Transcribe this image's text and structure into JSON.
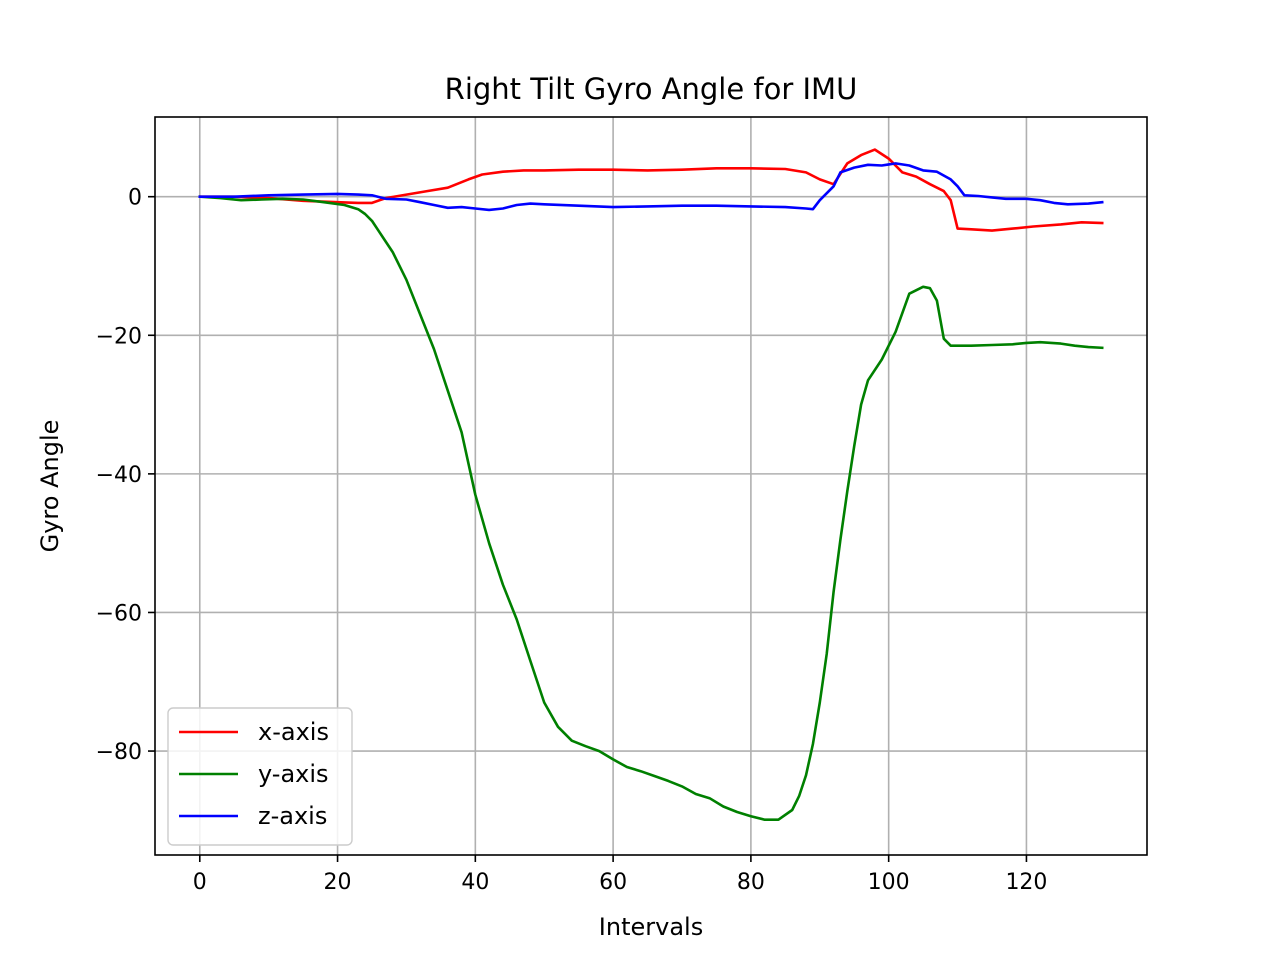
{
  "chart_data": {
    "type": "line",
    "title": "Right Tilt Gyro Angle for IMU",
    "xlabel": "Intervals",
    "ylabel": "Gyro Angle",
    "xlim": [
      -6.5,
      137.5
    ],
    "ylim": [
      -95,
      11.5
    ],
    "xticks": [
      0,
      20,
      40,
      60,
      80,
      100,
      120
    ],
    "xtick_labels": [
      "0",
      "20",
      "40",
      "60",
      "80",
      "100",
      "120"
    ],
    "yticks": [
      0,
      -20,
      -40,
      -60,
      -80
    ],
    "ytick_labels": [
      "0",
      "−20",
      "−40",
      "−60",
      "−80"
    ],
    "grid": true,
    "legend_position": "lower-left",
    "series": [
      {
        "name": "x-axis",
        "color": "#ff0000",
        "points": [
          [
            0,
            0
          ],
          [
            5,
            0
          ],
          [
            10,
            -0.2
          ],
          [
            15,
            -0.6
          ],
          [
            20,
            -0.8
          ],
          [
            23,
            -0.9
          ],
          [
            25,
            -0.9
          ],
          [
            27,
            -0.2
          ],
          [
            30,
            0.3
          ],
          [
            33,
            0.8
          ],
          [
            36,
            1.3
          ],
          [
            39,
            2.5
          ],
          [
            41,
            3.2
          ],
          [
            44,
            3.6
          ],
          [
            47,
            3.8
          ],
          [
            50,
            3.8
          ],
          [
            55,
            3.9
          ],
          [
            60,
            3.9
          ],
          [
            65,
            3.8
          ],
          [
            70,
            3.9
          ],
          [
            75,
            4.1
          ],
          [
            80,
            4.1
          ],
          [
            85,
            4.0
          ],
          [
            88,
            3.5
          ],
          [
            90,
            2.5
          ],
          [
            92,
            1.8
          ],
          [
            94,
            4.8
          ],
          [
            96,
            6.0
          ],
          [
            98,
            6.8
          ],
          [
            100,
            5.5
          ],
          [
            102,
            3.5
          ],
          [
            104,
            2.9
          ],
          [
            106,
            1.8
          ],
          [
            108,
            0.8
          ],
          [
            109,
            -0.5
          ],
          [
            110,
            -4.6
          ],
          [
            112,
            -4.7
          ],
          [
            115,
            -4.9
          ],
          [
            118,
            -4.6
          ],
          [
            121,
            -4.3
          ],
          [
            125,
            -4.0
          ],
          [
            128,
            -3.7
          ],
          [
            131,
            -3.8
          ]
        ]
      },
      {
        "name": "y-axis",
        "color": "#008000",
        "points": [
          [
            0,
            0
          ],
          [
            3,
            -0.2
          ],
          [
            6,
            -0.5
          ],
          [
            9,
            -0.4
          ],
          [
            12,
            -0.3
          ],
          [
            15,
            -0.4
          ],
          [
            18,
            -0.8
          ],
          [
            21,
            -1.2
          ],
          [
            23,
            -1.8
          ],
          [
            24,
            -2.5
          ],
          [
            25,
            -3.5
          ],
          [
            26,
            -5.0
          ],
          [
            28,
            -8.0
          ],
          [
            30,
            -12.0
          ],
          [
            32,
            -17.0
          ],
          [
            34,
            -22.0
          ],
          [
            36,
            -28.0
          ],
          [
            38,
            -34.0
          ],
          [
            40,
            -43.0
          ],
          [
            42,
            -50.0
          ],
          [
            44,
            -56.0
          ],
          [
            46,
            -61.0
          ],
          [
            48,
            -67.0
          ],
          [
            50,
            -73.0
          ],
          [
            52,
            -76.5
          ],
          [
            54,
            -78.5
          ],
          [
            56,
            -79.3
          ],
          [
            58,
            -80.0
          ],
          [
            60,
            -81.2
          ],
          [
            62,
            -82.3
          ],
          [
            64,
            -82.9
          ],
          [
            66,
            -83.6
          ],
          [
            68,
            -84.3
          ],
          [
            70,
            -85.1
          ],
          [
            72,
            -86.2
          ],
          [
            74,
            -86.8
          ],
          [
            76,
            -88.0
          ],
          [
            78,
            -88.8
          ],
          [
            80,
            -89.4
          ],
          [
            82,
            -89.9
          ],
          [
            84,
            -89.9
          ],
          [
            86,
            -88.5
          ],
          [
            87,
            -86.5
          ],
          [
            88,
            -83.5
          ],
          [
            89,
            -79.0
          ],
          [
            90,
            -73.0
          ],
          [
            91,
            -66.0
          ],
          [
            92,
            -57.0
          ],
          [
            93,
            -49.5
          ],
          [
            94,
            -42.5
          ],
          [
            95,
            -36.0
          ],
          [
            96,
            -30.0
          ],
          [
            97,
            -26.5
          ],
          [
            99,
            -23.5
          ],
          [
            101,
            -19.5
          ],
          [
            103,
            -14.0
          ],
          [
            105,
            -13.0
          ],
          [
            106,
            -13.2
          ],
          [
            107,
            -15.0
          ],
          [
            108,
            -20.5
          ],
          [
            109,
            -21.5
          ],
          [
            112,
            -21.5
          ],
          [
            115,
            -21.4
          ],
          [
            118,
            -21.3
          ],
          [
            120,
            -21.1
          ],
          [
            122,
            -21.0
          ],
          [
            125,
            -21.2
          ],
          [
            127,
            -21.5
          ],
          [
            129,
            -21.7
          ],
          [
            131,
            -21.8
          ]
        ]
      },
      {
        "name": "z-axis",
        "color": "#0000ff",
        "points": [
          [
            0,
            0
          ],
          [
            5,
            0
          ],
          [
            10,
            0.2
          ],
          [
            15,
            0.3
          ],
          [
            20,
            0.4
          ],
          [
            23,
            0.3
          ],
          [
            25,
            0.2
          ],
          [
            27,
            -0.3
          ],
          [
            30,
            -0.4
          ],
          [
            32,
            -0.8
          ],
          [
            34,
            -1.2
          ],
          [
            36,
            -1.6
          ],
          [
            38,
            -1.5
          ],
          [
            40,
            -1.7
          ],
          [
            42,
            -1.9
          ],
          [
            44,
            -1.7
          ],
          [
            46,
            -1.2
          ],
          [
            48,
            -1.0
          ],
          [
            50,
            -1.1
          ],
          [
            55,
            -1.3
          ],
          [
            60,
            -1.5
          ],
          [
            65,
            -1.4
          ],
          [
            70,
            -1.3
          ],
          [
            75,
            -1.3
          ],
          [
            80,
            -1.4
          ],
          [
            85,
            -1.5
          ],
          [
            88,
            -1.7
          ],
          [
            89,
            -1.8
          ],
          [
            90,
            -0.5
          ],
          [
            92,
            1.5
          ],
          [
            93,
            3.5
          ],
          [
            95,
            4.2
          ],
          [
            97,
            4.6
          ],
          [
            99,
            4.5
          ],
          [
            101,
            4.8
          ],
          [
            103,
            4.5
          ],
          [
            105,
            3.8
          ],
          [
            107,
            3.6
          ],
          [
            109,
            2.5
          ],
          [
            110,
            1.5
          ],
          [
            111,
            0.2
          ],
          [
            113,
            0.1
          ],
          [
            115,
            -0.1
          ],
          [
            117,
            -0.3
          ],
          [
            120,
            -0.3
          ],
          [
            122,
            -0.5
          ],
          [
            124,
            -0.9
          ],
          [
            126,
            -1.1
          ],
          [
            129,
            -1.0
          ],
          [
            131,
            -0.8
          ]
        ]
      }
    ]
  }
}
